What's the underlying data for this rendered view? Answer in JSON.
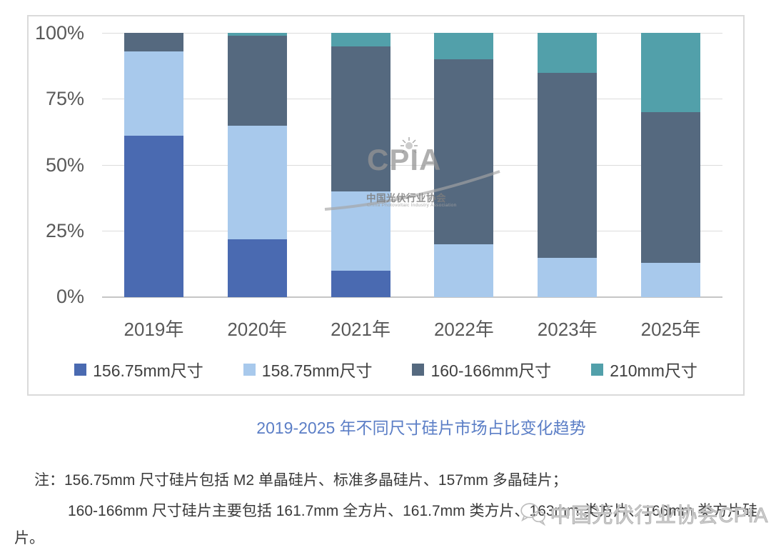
{
  "chart_data": {
    "type": "bar",
    "stacked": true,
    "title": "2019-2025 年不同尺寸硅片市场占比变化趋势",
    "categories": [
      "2019年",
      "2020年",
      "2021年",
      "2022年",
      "2023年",
      "2025年"
    ],
    "series": [
      {
        "name": "156.75mm尺寸",
        "color": "#4a6ab1",
        "values": [
          61,
          22,
          10,
          0,
          0,
          0
        ]
      },
      {
        "name": "158.75mm尺寸",
        "color": "#a8c9ec",
        "values": [
          32,
          43,
          30,
          20,
          15,
          13
        ]
      },
      {
        "name": "160-166mm尺寸",
        "color": "#55697f",
        "values": [
          7,
          34,
          55,
          70,
          70,
          57
        ]
      },
      {
        "name": "210mm尺寸",
        "color": "#52a0aa",
        "values": [
          0,
          1,
          5,
          10,
          15,
          30
        ]
      }
    ],
    "yticks": [
      "100%",
      "75%",
      "50%",
      "25%",
      "0%"
    ],
    "ylim": [
      0,
      100
    ],
    "grid": true,
    "legend_position": "bottom"
  },
  "caption": "2019-2025 年不同尺寸硅片市场占比变化趋势",
  "note": {
    "line1": "注：156.75mm 尺寸硅片包括 M2 单晶硅片、标准多晶硅片、157mm 多晶硅片；",
    "line2": "160-166mm 尺寸硅片主要包括 161.7mm 全方片、161.7mm 类方片、163mm 类方片、166mm 类方片硅",
    "line3": "片。"
  },
  "watermark_center": {
    "acronym": "CPIA",
    "name_cn": "中国光伏行业协会",
    "name_en": "China Photovoltaic Industry Association"
  },
  "watermark_bottom": {
    "text": "中国光伏行业协会CPIA"
  }
}
